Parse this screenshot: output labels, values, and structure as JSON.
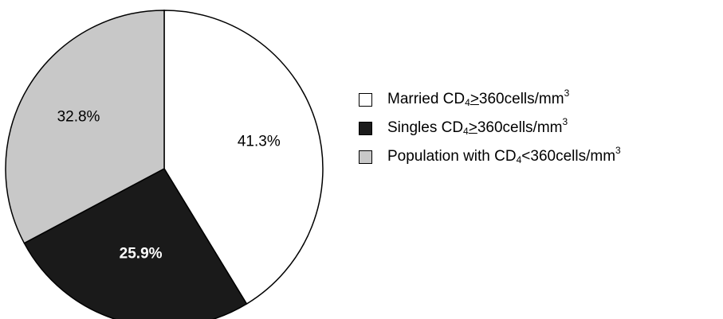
{
  "chart_data": {
    "type": "pie",
    "start_angle_deg": 0,
    "direction": "clockwise",
    "slices": [
      {
        "label_pre": "Married CD",
        "label_sub": "4",
        "label_op": ">",
        "label_post": "360cells/mm",
        "label_sup": "3",
        "value": 41.3,
        "value_label": "41.3%",
        "color": "#ffffff",
        "value_label_bold": false,
        "value_label_color": "#000000"
      },
      {
        "label_pre": "Singles CD",
        "label_sub": "4",
        "label_op": ">",
        "label_post": "360cells/mm",
        "label_sup": "3",
        "value": 25.9,
        "value_label": "25.9%",
        "color": "#1a1a1a",
        "value_label_bold": true,
        "value_label_color": "#ffffff"
      },
      {
        "label_pre": "Population with CD",
        "label_sub": "4",
        "label_op": "<",
        "label_post": "360cells/mm",
        "label_sup": "3",
        "value": 32.8,
        "value_label": "32.8%",
        "color": "#c8c8c8",
        "value_label_bold": false,
        "value_label_color": "#000000"
      }
    ],
    "legend_position": "right"
  }
}
